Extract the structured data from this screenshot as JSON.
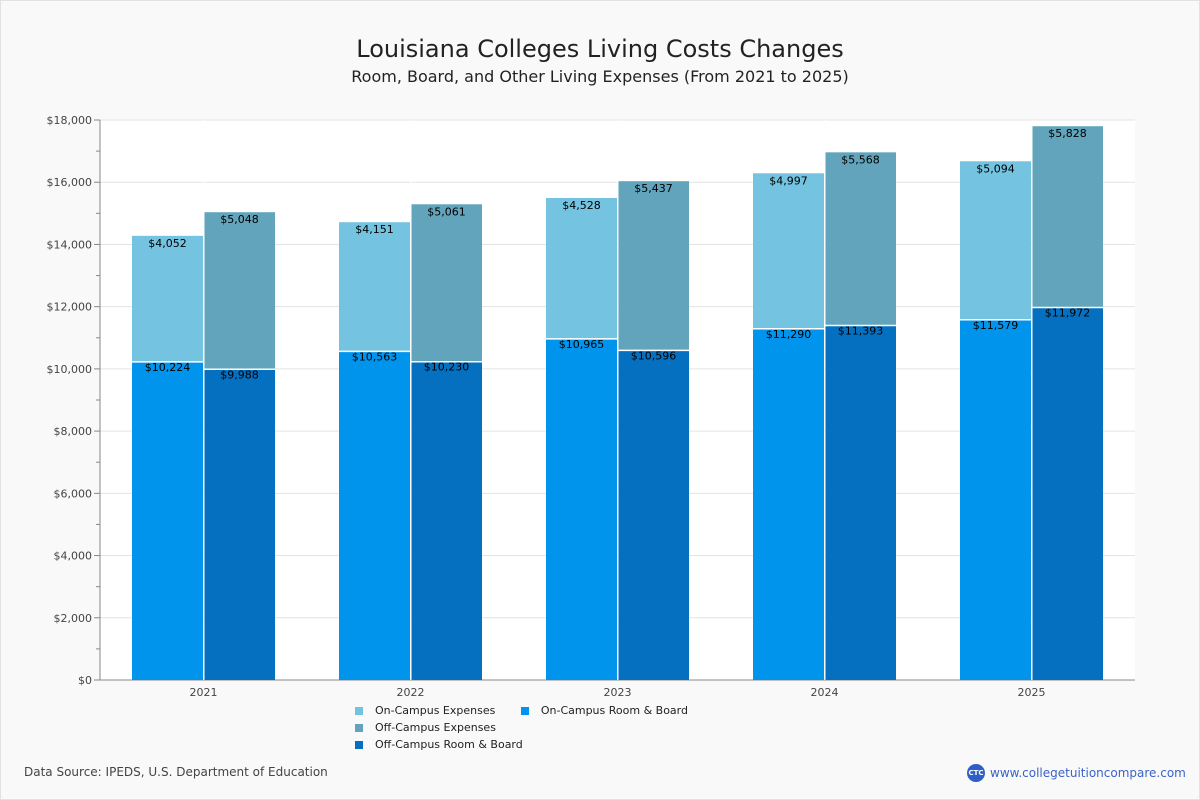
{
  "header": {
    "title": "Louisiana Colleges  Living Costs Changes",
    "subtitle": "Room, Board, and Other Living Expenses (From 2021 to 2025)"
  },
  "footer": {
    "source": "Data Source: IPEDS, U.S. Department of Education",
    "site": "www.collegetuitioncompare.com",
    "logo_text": "CTC"
  },
  "chart_data": {
    "type": "bar",
    "stacked": true,
    "grouped": true,
    "title": "Louisiana Colleges  Living Costs Changes",
    "subtitle": "Room, Board, and Other Living Expenses (From 2021 to 2025)",
    "xlabel": "",
    "ylabel": "",
    "ylim": [
      0,
      18000
    ],
    "yticks": [
      0,
      2000,
      4000,
      6000,
      8000,
      10000,
      12000,
      14000,
      16000,
      18000
    ],
    "ytick_labels": [
      "$0",
      "$2,000",
      "$4,000",
      "$6,000",
      "$8,000",
      "$10,000",
      "$12,000",
      "$14,000",
      "$16,000",
      "$18,000"
    ],
    "grid": true,
    "legend_position": "bottom",
    "categories": [
      "2021",
      "2022",
      "2023",
      "2024",
      "2025"
    ],
    "series": [
      {
        "name": "On-Campus Expenses",
        "stack": "on-campus",
        "color": "#73c3e1",
        "values": [
          4052,
          4151,
          4528,
          4997,
          5094
        ],
        "labels": [
          "$4,052",
          "$4,151",
          "$4,528",
          "$4,997",
          "$5,094"
        ]
      },
      {
        "name": "On-Campus Room & Board",
        "stack": "on-campus",
        "color": "#0194ec",
        "values": [
          10224,
          10563,
          10965,
          11290,
          11579
        ],
        "labels": [
          "$10,224",
          "$10,563",
          "$10,965",
          "$11,290",
          "$11,579"
        ]
      },
      {
        "name": "Off-Campus Expenses",
        "stack": "off-campus",
        "color": "#61a4bb",
        "values": [
          5048,
          5061,
          5437,
          5568,
          5828
        ],
        "labels": [
          "$5,048",
          "$5,061",
          "$5,437",
          "$5,568",
          "$5,828"
        ]
      },
      {
        "name": "Off-Campus Room & Board",
        "stack": "off-campus",
        "color": "#0670c0",
        "values": [
          9988,
          10230,
          10596,
          11393,
          11972
        ],
        "labels": [
          "$9,988",
          "$10,230",
          "$10,596",
          "$11,393",
          "$11,972"
        ]
      }
    ]
  }
}
